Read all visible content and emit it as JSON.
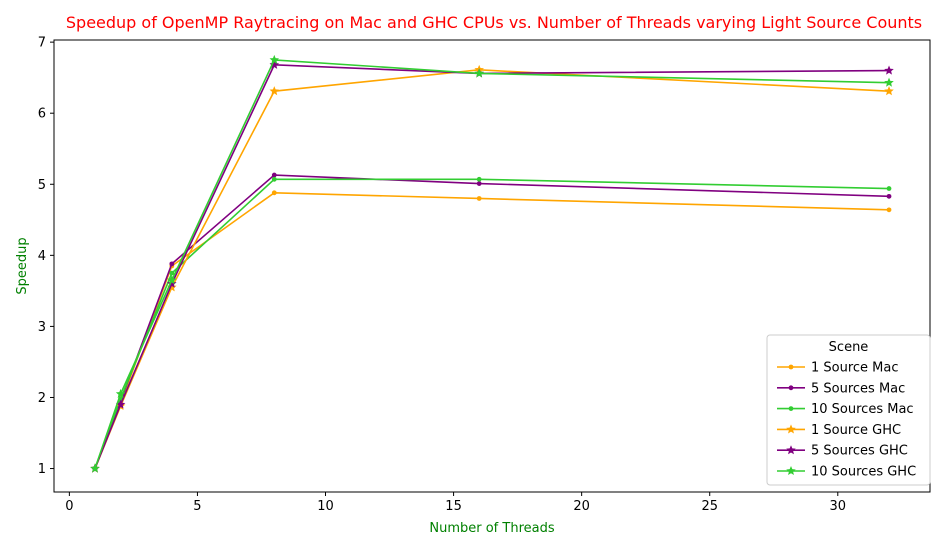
{
  "chart_data": {
    "type": "line",
    "title": "Speedup of OpenMP Raytracing on Mac and GHC CPUs vs. Number of Threads varying Light Source Counts",
    "xlabel": "Number of Threads",
    "ylabel": "Speedup",
    "title_color": "#ff0000",
    "label_color": "#008000",
    "xlim": [
      -0.6,
      33.6
    ],
    "ylim": [
      0.67,
      7.03
    ],
    "xticks": [
      0,
      5,
      10,
      15,
      20,
      25,
      30
    ],
    "yticks": [
      1,
      2,
      3,
      4,
      5,
      6,
      7
    ],
    "grid": false,
    "legend": {
      "title": "Scene",
      "position": "lower-right"
    },
    "x": [
      1,
      2,
      4,
      8,
      16,
      32
    ],
    "series": [
      {
        "name": "1 Source Mac",
        "color": "#ffa500",
        "marker": "dot",
        "values": [
          1.0,
          1.92,
          3.85,
          4.88,
          4.8,
          4.64
        ]
      },
      {
        "name": "5 Sources Mac",
        "color": "#800080",
        "marker": "dot",
        "values": [
          1.0,
          1.95,
          3.88,
          5.13,
          5.01,
          4.83
        ]
      },
      {
        "name": "10 Sources Mac",
        "color": "#32cd32",
        "marker": "dot",
        "values": [
          1.0,
          1.98,
          3.75,
          5.07,
          5.07,
          4.94
        ]
      },
      {
        "name": "1 Source GHC",
        "color": "#ffa500",
        "marker": "star",
        "values": [
          1.0,
          1.88,
          3.55,
          6.31,
          6.61,
          6.31
        ]
      },
      {
        "name": "5 Sources GHC",
        "color": "#800080",
        "marker": "star",
        "values": [
          1.0,
          1.9,
          3.6,
          6.68,
          6.56,
          6.6
        ]
      },
      {
        "name": "10 Sources GHC",
        "color": "#32cd32",
        "marker": "star",
        "values": [
          1.0,
          2.05,
          3.65,
          6.75,
          6.56,
          6.43
        ]
      }
    ]
  }
}
